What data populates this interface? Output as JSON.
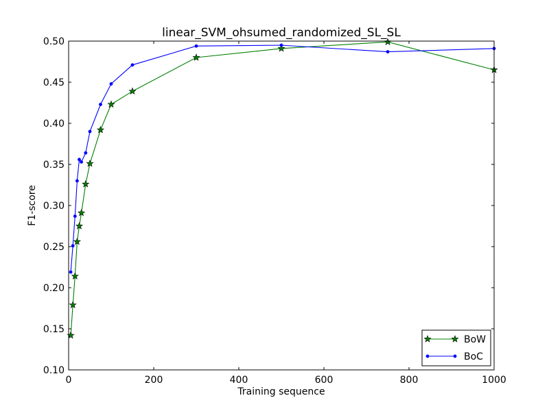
{
  "chart_data": {
    "type": "line",
    "title": "linear_SVM_ohsumed_randomized_SL_SL",
    "xlabel": "Training sequence",
    "ylabel": "F1-score",
    "xlim": [
      0,
      1000
    ],
    "ylim": [
      0.1,
      0.5
    ],
    "xticks": [
      "0",
      "200",
      "400",
      "600",
      "800",
      "1000"
    ],
    "yticks": [
      "0.10",
      "0.15",
      "0.20",
      "0.25",
      "0.30",
      "0.35",
      "0.40",
      "0.45",
      "0.50"
    ],
    "grid": false,
    "legend_position": "lower-right",
    "series": [
      {
        "name": "BoW",
        "color": "#008000",
        "marker": "star",
        "x": [
          5,
          10,
          15,
          20,
          25,
          30,
          40,
          50,
          75,
          100,
          150,
          300,
          500,
          750,
          1000
        ],
        "y": [
          0.142,
          0.179,
          0.214,
          0.256,
          0.275,
          0.291,
          0.326,
          0.351,
          0.392,
          0.423,
          0.439,
          0.48,
          0.491,
          0.499,
          0.465
        ]
      },
      {
        "name": "BoC",
        "color": "#0000ff",
        "marker": "dot",
        "x": [
          5,
          10,
          15,
          20,
          25,
          30,
          40,
          50,
          75,
          100,
          150,
          300,
          500,
          750,
          1000
        ],
        "y": [
          0.219,
          0.251,
          0.287,
          0.33,
          0.356,
          0.353,
          0.364,
          0.39,
          0.423,
          0.448,
          0.471,
          0.494,
          0.495,
          0.487,
          0.491
        ]
      }
    ]
  }
}
